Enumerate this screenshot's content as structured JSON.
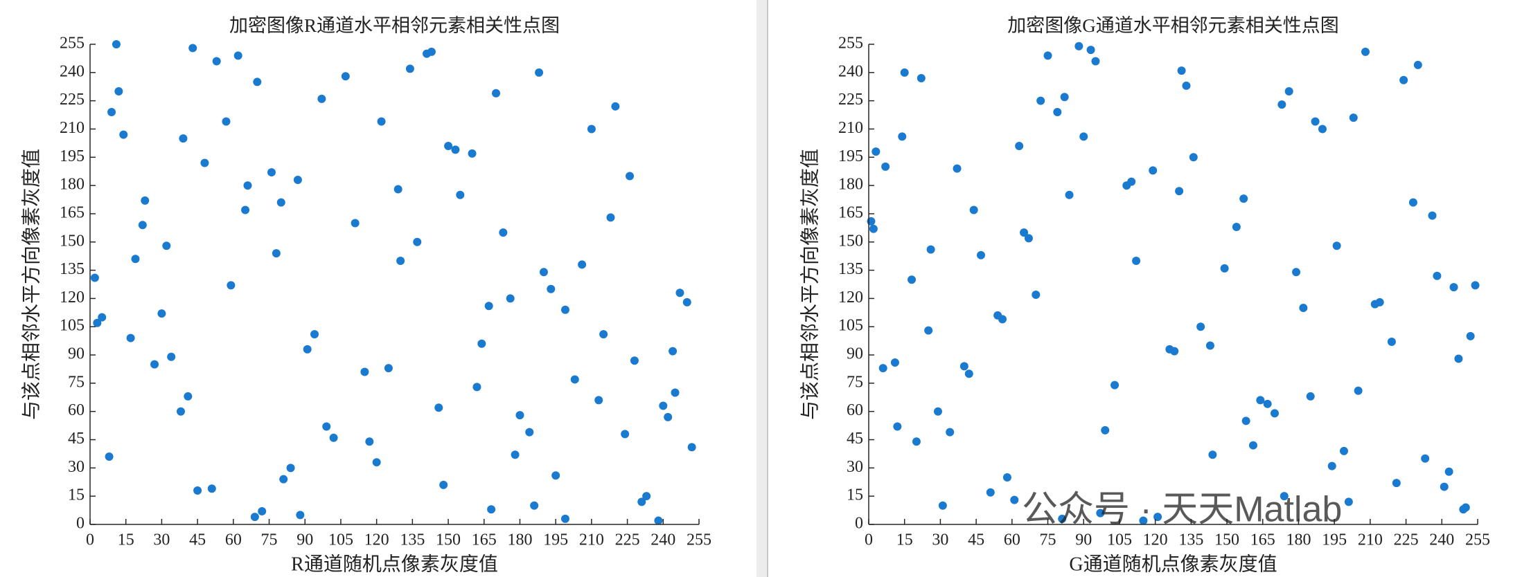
{
  "chart_data": [
    {
      "type": "scatter",
      "title": "加密图像R通道水平相邻元素相关性点图",
      "xlabel": "R通道随机点像素灰度值",
      "ylabel": "与该点相邻水平方向像素灰度值",
      "color": "#1a7ad0",
      "x": [
        12,
        45,
        78,
        203,
        150,
        99,
        231,
        17,
        66,
        188,
        240,
        5,
        120,
        173,
        34,
        210,
        88,
        141,
        59,
        252,
        23,
        164,
        107,
        195,
        41,
        226,
        130,
        72,
        9,
        180,
        247,
        53,
        115,
        218,
        84,
        160,
        30,
        199,
        137,
        70,
        245,
        14,
        102,
        176,
        48,
        233,
        125,
        62,
        190,
        8,
        155,
        94,
        220,
        38,
        168,
        111,
        250,
        27,
        143,
        81,
        206,
        57,
        184,
        3,
        129,
        238,
        91,
        170,
        19,
        213,
        76,
        148,
        43,
        199,
        117,
        65,
        228,
        153,
        2,
        186,
        97,
        242,
        32,
        162,
        134,
        51,
        215,
        87,
        178,
        22,
        122,
        244,
        69,
        193,
        11,
        146,
        80,
        224,
        39,
        167
      ],
      "y": [
        230,
        18,
        144,
        77,
        201,
        52,
        12,
        99,
        180,
        240,
        63,
        110,
        33,
        155,
        89,
        210,
        5,
        250,
        127,
        41,
        172,
        96,
        238,
        26,
        68,
        185,
        140,
        7,
        219,
        58,
        123,
        246,
        81,
        163,
        30,
        197,
        112,
        3,
        150,
        235,
        70,
        207,
        46,
        120,
        192,
        15,
        83,
        249,
        134,
        36,
        175,
        101,
        222,
        60,
        8,
        160,
        118,
        85,
        251,
        24,
        138,
        214,
        49,
        107,
        178,
        2,
        93,
        229,
        141,
        66,
        187,
        21,
        253,
        114,
        44,
        167,
        87,
        199,
        131,
        10,
        226,
        57,
        148,
        73,
        242,
        19,
        101,
        183,
        37,
        159,
        214,
        92,
        4,
        125,
        255,
        62,
        171,
        48,
        205,
        116
      ],
      "xlim": [
        0,
        255
      ],
      "ylim": [
        0,
        255
      ],
      "xticks": [
        0,
        15,
        30,
        45,
        60,
        75,
        90,
        105,
        120,
        135,
        150,
        165,
        180,
        195,
        210,
        225,
        240,
        255
      ],
      "yticks": [
        0,
        15,
        30,
        45,
        60,
        75,
        90,
        105,
        120,
        135,
        150,
        165,
        180,
        195,
        210,
        225,
        240,
        255
      ]
    },
    {
      "type": "scatter",
      "title": "加密图像G通道水平相邻元素相关性点图",
      "xlabel": "G通道随机点像素灰度值",
      "ylabel": "与该点相邻水平方向像素灰度值",
      "color": "#1a7ad0",
      "x": [
        3,
        58,
        112,
        247,
        176,
        29,
        201,
        84,
        139,
        15,
        233,
        67,
        190,
        42,
        121,
        254,
        95,
        158,
        7,
        214,
        51,
        173,
        126,
        236,
        20,
        88,
        149,
        205,
        63,
        31,
        182,
        110,
        243,
        75,
        164,
        2,
        219,
        133,
        47,
        97,
        228,
        12,
        187,
        70,
        144,
        252,
        37,
        115,
        196,
        82,
        6,
        170,
        224,
        54,
        130,
        241,
        90,
        18,
        161,
        208,
        44,
        103,
        250,
        136,
        25,
        194,
        79,
        154,
        11,
        230,
        61,
        179,
        119,
        34,
        212,
        93,
        167,
        249,
        1,
        143,
        72,
        199,
        26,
        108,
        221,
        56,
        185,
        131,
        14,
        238,
        81,
        157,
        40,
        203,
        99,
        245,
        22,
        174,
        128,
        65
      ],
      "y": [
        198,
        25,
        140,
        88,
        230,
        60,
        12,
        175,
        105,
        240,
        35,
        152,
        210,
        80,
        4,
        127,
        246,
        55,
        190,
        118,
        17,
        223,
        93,
        164,
        44,
        254,
        136,
        71,
        201,
        10,
        115,
        182,
        28,
        249,
        66,
        157,
        97,
        233,
        143,
        6,
        171,
        52,
        214,
        122,
        37,
        100,
        189,
        2,
        148,
        227,
        83,
        59,
        236,
        111,
        177,
        20,
        206,
        130,
        42,
        251,
        167,
        74,
        9,
        195,
        103,
        31,
        219,
        158,
        86,
        244,
        13,
        134,
        188,
        49,
        117,
        252,
        64,
        8,
        161,
        95,
        225,
        39,
        146,
        180,
        22,
        109,
        68,
        241,
        206,
        132,
        3,
        173,
        84,
        216,
        50,
        126,
        237,
        15,
        92,
        155
      ],
      "xlim": [
        0,
        255
      ],
      "ylim": [
        0,
        255
      ],
      "xticks": [
        0,
        15,
        30,
        45,
        60,
        75,
        90,
        105,
        120,
        135,
        150,
        165,
        180,
        195,
        210,
        225,
        240,
        255
      ],
      "yticks": [
        0,
        15,
        30,
        45,
        60,
        75,
        90,
        105,
        120,
        135,
        150,
        165,
        180,
        195,
        210,
        225,
        240,
        255
      ]
    }
  ],
  "watermark": "公众号 · 天天Matlab"
}
